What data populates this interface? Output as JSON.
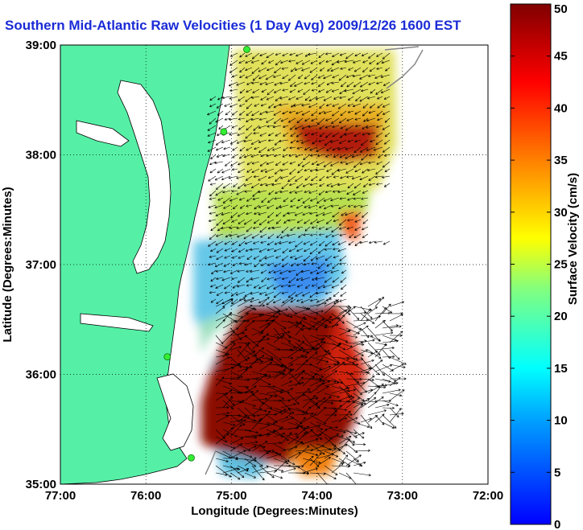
{
  "title": "Southern Mid-Atlantic Raw Velocities (1 Day Avg) 2009/12/26 1600 EST",
  "map": {
    "xlabel": "Longitude (Degrees:Minutes)",
    "ylabel": "Latitude (Degrees:Minutes)",
    "lon_range": [
      -77,
      -72
    ],
    "lat_range": [
      35,
      39
    ],
    "lon_ticks": [
      {
        "v": -77,
        "label": "77:00"
      },
      {
        "v": -76,
        "label": "76:00"
      },
      {
        "v": -75,
        "label": "75:00"
      },
      {
        "v": -74,
        "label": "74:00"
      },
      {
        "v": -73,
        "label": "73:00"
      },
      {
        "v": -72,
        "label": "72:00"
      }
    ],
    "lat_ticks": [
      {
        "v": 35,
        "label": "35:00"
      },
      {
        "v": 36,
        "label": "36:00"
      },
      {
        "v": 37,
        "label": "37:00"
      },
      {
        "v": 38,
        "label": "38:00"
      },
      {
        "v": 39,
        "label": "39:00"
      }
    ],
    "gridlines": true,
    "land_color": "#55f0a6",
    "stations": [
      {
        "lon": -74.82,
        "lat": 38.96
      },
      {
        "lon": -75.09,
        "lat": 38.21
      },
      {
        "lon": -75.75,
        "lat": 36.16
      },
      {
        "lon": -75.47,
        "lat": 35.24
      }
    ]
  },
  "colorbar": {
    "label": "Surface Velocity (cm/s)",
    "min": 0,
    "max": 50,
    "ticks": [
      0,
      5,
      10,
      15,
      20,
      25,
      30,
      35,
      40,
      45,
      50
    ]
  }
}
